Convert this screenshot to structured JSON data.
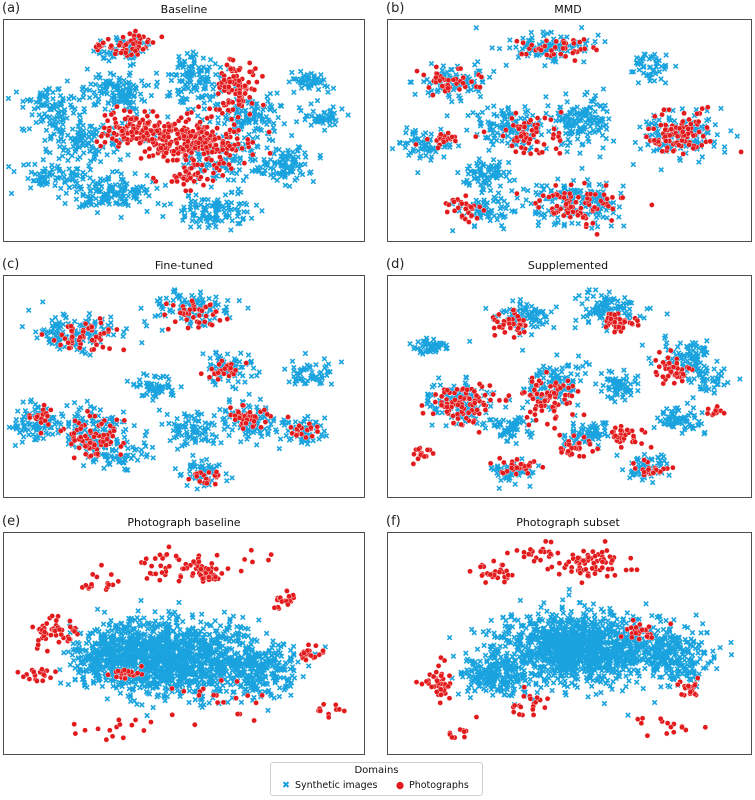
{
  "chart_data": [
    {
      "panel": "(a)",
      "title": "Baseline",
      "type": "scatter",
      "series": [
        {
          "name": "Synthetic images",
          "color": "#1aa3de",
          "marker": "x",
          "clusters": [
            [
              0.33,
              0.14,
              0.07,
              0.06,
              70
            ],
            [
              0.12,
              0.4,
              0.08,
              0.1,
              90
            ],
            [
              0.32,
              0.33,
              0.1,
              0.09,
              130
            ],
            [
              0.53,
              0.28,
              0.09,
              0.12,
              130
            ],
            [
              0.22,
              0.55,
              0.1,
              0.09,
              110
            ],
            [
              0.3,
              0.78,
              0.12,
              0.08,
              140
            ],
            [
              0.58,
              0.86,
              0.1,
              0.07,
              120
            ],
            [
              0.78,
              0.65,
              0.08,
              0.08,
              100
            ],
            [
              0.68,
              0.44,
              0.1,
              0.09,
              120
            ],
            [
              0.88,
              0.44,
              0.06,
              0.05,
              50
            ],
            [
              0.84,
              0.28,
              0.06,
              0.05,
              50
            ],
            [
              0.62,
              0.62,
              0.12,
              0.12,
              120
            ],
            [
              0.15,
              0.7,
              0.1,
              0.09,
              90
            ]
          ]
        },
        {
          "name": "Photographs",
          "color": "#e31a1c",
          "marker": "o",
          "clusters": [
            [
              0.53,
              0.55,
              0.14,
              0.12,
              260
            ],
            [
              0.36,
              0.5,
              0.09,
              0.07,
              110
            ],
            [
              0.65,
              0.3,
              0.06,
              0.12,
              90
            ],
            [
              0.36,
              0.12,
              0.05,
              0.05,
              40
            ],
            [
              0.52,
              0.7,
              0.08,
              0.06,
              40
            ],
            [
              0.28,
              0.12,
              0.04,
              0.04,
              15
            ]
          ]
        }
      ]
    },
    {
      "panel": "(b)",
      "title": "MMD",
      "type": "scatter",
      "series": [
        {
          "name": "Synthetic images",
          "color": "#1aa3de",
          "marker": "x",
          "clusters": [
            [
              0.44,
              0.12,
              0.12,
              0.06,
              110
            ],
            [
              0.18,
              0.28,
              0.1,
              0.07,
              90
            ],
            [
              0.1,
              0.56,
              0.07,
              0.07,
              70
            ],
            [
              0.33,
              0.49,
              0.1,
              0.09,
              120
            ],
            [
              0.53,
              0.46,
              0.09,
              0.12,
              150
            ],
            [
              0.8,
              0.52,
              0.12,
              0.1,
              150
            ],
            [
              0.72,
              0.21,
              0.05,
              0.07,
              50
            ],
            [
              0.27,
              0.7,
              0.07,
              0.08,
              80
            ],
            [
              0.52,
              0.82,
              0.14,
              0.1,
              170
            ],
            [
              0.27,
              0.86,
              0.08,
              0.07,
              70
            ]
          ]
        },
        {
          "name": "Photographs",
          "color": "#e31a1c",
          "marker": "o",
          "clusters": [
            [
              0.8,
              0.52,
              0.1,
              0.09,
              90
            ],
            [
              0.52,
              0.83,
              0.12,
              0.08,
              80
            ],
            [
              0.17,
              0.28,
              0.08,
              0.06,
              40
            ],
            [
              0.4,
              0.52,
              0.1,
              0.1,
              60
            ],
            [
              0.46,
              0.13,
              0.1,
              0.05,
              40
            ],
            [
              0.22,
              0.85,
              0.06,
              0.05,
              30
            ],
            [
              0.14,
              0.54,
              0.05,
              0.05,
              20
            ]
          ]
        }
      ]
    },
    {
      "panel": "(c)",
      "title": "Fine-tuned",
      "type": "scatter",
      "series": [
        {
          "name": "Synthetic images",
          "color": "#1aa3de",
          "marker": "x",
          "clusters": [
            [
              0.2,
              0.26,
              0.12,
              0.08,
              130
            ],
            [
              0.52,
              0.15,
              0.1,
              0.07,
              110
            ],
            [
              0.62,
              0.42,
              0.07,
              0.07,
              80
            ],
            [
              0.42,
              0.5,
              0.06,
              0.06,
              60
            ],
            [
              0.85,
              0.45,
              0.06,
              0.06,
              60
            ],
            [
              0.09,
              0.66,
              0.07,
              0.09,
              90
            ],
            [
              0.25,
              0.7,
              0.1,
              0.12,
              140
            ],
            [
              0.52,
              0.7,
              0.07,
              0.08,
              80
            ],
            [
              0.68,
              0.66,
              0.09,
              0.09,
              100
            ],
            [
              0.83,
              0.7,
              0.06,
              0.06,
              60
            ],
            [
              0.55,
              0.88,
              0.06,
              0.06,
              60
            ],
            [
              0.33,
              0.8,
              0.08,
              0.07,
              60
            ]
          ]
        },
        {
          "name": "Photographs",
          "color": "#e31a1c",
          "marker": "o",
          "clusters": [
            [
              0.22,
              0.28,
              0.1,
              0.07,
              50
            ],
            [
              0.54,
              0.18,
              0.08,
              0.06,
              40
            ],
            [
              0.25,
              0.72,
              0.08,
              0.09,
              70
            ],
            [
              0.68,
              0.64,
              0.07,
              0.07,
              40
            ],
            [
              0.6,
              0.42,
              0.05,
              0.05,
              25
            ],
            [
              0.84,
              0.7,
              0.04,
              0.04,
              20
            ],
            [
              0.1,
              0.64,
              0.05,
              0.05,
              20
            ],
            [
              0.55,
              0.9,
              0.05,
              0.04,
              20
            ]
          ]
        }
      ]
    },
    {
      "panel": "(d)",
      "title": "Supplemented",
      "type": "scatter",
      "series": [
        {
          "name": "Synthetic images",
          "color": "#1aa3de",
          "marker": "x",
          "clusters": [
            [
              0.38,
              0.18,
              0.08,
              0.06,
              80
            ],
            [
              0.6,
              0.16,
              0.1,
              0.08,
              100
            ],
            [
              0.12,
              0.32,
              0.06,
              0.04,
              50
            ],
            [
              0.2,
              0.57,
              0.1,
              0.1,
              120
            ],
            [
              0.46,
              0.48,
              0.08,
              0.1,
              120
            ],
            [
              0.64,
              0.5,
              0.06,
              0.06,
              70
            ],
            [
              0.82,
              0.36,
              0.07,
              0.07,
              80
            ],
            [
              0.87,
              0.47,
              0.06,
              0.06,
              50
            ],
            [
              0.8,
              0.65,
              0.07,
              0.06,
              70
            ],
            [
              0.54,
              0.72,
              0.07,
              0.07,
              80
            ],
            [
              0.34,
              0.68,
              0.07,
              0.06,
              60
            ],
            [
              0.34,
              0.88,
              0.07,
              0.05,
              60
            ],
            [
              0.72,
              0.86,
              0.06,
              0.06,
              60
            ]
          ]
        },
        {
          "name": "Photographs",
          "color": "#e31a1c",
          "marker": "o",
          "clusters": [
            [
              0.2,
              0.58,
              0.09,
              0.1,
              90
            ],
            [
              0.44,
              0.56,
              0.08,
              0.1,
              80
            ],
            [
              0.34,
              0.22,
              0.05,
              0.05,
              40
            ],
            [
              0.63,
              0.22,
              0.05,
              0.05,
              40
            ],
            [
              0.78,
              0.42,
              0.06,
              0.06,
              40
            ],
            [
              0.65,
              0.72,
              0.05,
              0.06,
              30
            ],
            [
              0.52,
              0.76,
              0.05,
              0.05,
              30
            ],
            [
              0.36,
              0.86,
              0.06,
              0.04,
              30
            ],
            [
              0.72,
              0.88,
              0.05,
              0.04,
              25
            ],
            [
              0.1,
              0.8,
              0.04,
              0.04,
              15
            ],
            [
              0.9,
              0.6,
              0.03,
              0.03,
              10
            ]
          ]
        }
      ]
    },
    {
      "panel": "(e)",
      "title": "Photograph baseline",
      "type": "scatter",
      "series": [
        {
          "name": "Synthetic images",
          "color": "#1aa3de",
          "marker": "x",
          "clusters": [
            [
              0.46,
              0.56,
              0.22,
              0.17,
              1300
            ],
            [
              0.7,
              0.62,
              0.12,
              0.12,
              250
            ],
            [
              0.28,
              0.55,
              0.1,
              0.12,
              200
            ]
          ]
        },
        {
          "name": "Photographs",
          "color": "#e31a1c",
          "marker": "o",
          "clusters": [
            [
              0.14,
              0.45,
              0.05,
              0.06,
              50
            ],
            [
              0.5,
              0.15,
              0.2,
              0.08,
              60
            ],
            [
              0.56,
              0.19,
              0.03,
              0.03,
              25
            ],
            [
              0.78,
              0.3,
              0.04,
              0.04,
              20
            ],
            [
              0.85,
              0.55,
              0.04,
              0.04,
              20
            ],
            [
              0.1,
              0.65,
              0.06,
              0.06,
              20
            ],
            [
              0.34,
              0.63,
              0.05,
              0.04,
              20
            ],
            [
              0.26,
              0.22,
              0.06,
              0.06,
              15
            ],
            [
              0.6,
              0.75,
              0.15,
              0.1,
              20
            ],
            [
              0.9,
              0.82,
              0.06,
              0.06,
              10
            ],
            [
              0.32,
              0.88,
              0.15,
              0.05,
              15
            ]
          ]
        }
      ]
    },
    {
      "panel": "(f)",
      "title": "Photograph subset",
      "type": "scatter",
      "series": [
        {
          "name": "Synthetic images",
          "color": "#1aa3de",
          "marker": "x",
          "clusters": [
            [
              0.52,
              0.52,
              0.22,
              0.15,
              1300
            ],
            [
              0.78,
              0.56,
              0.12,
              0.12,
              250
            ],
            [
              0.3,
              0.65,
              0.1,
              0.1,
              200
            ]
          ]
        },
        {
          "name": "Photographs",
          "color": "#e31a1c",
          "marker": "o",
          "clusters": [
            [
              0.55,
              0.14,
              0.12,
              0.07,
              70
            ],
            [
              0.3,
              0.18,
              0.06,
              0.06,
              30
            ],
            [
              0.7,
              0.45,
              0.06,
              0.04,
              25
            ],
            [
              0.14,
              0.68,
              0.04,
              0.08,
              40
            ],
            [
              0.82,
              0.7,
              0.05,
              0.05,
              20
            ],
            [
              0.4,
              0.78,
              0.06,
              0.06,
              20
            ],
            [
              0.76,
              0.87,
              0.08,
              0.06,
              15
            ],
            [
              0.22,
              0.9,
              0.06,
              0.04,
              10
            ],
            [
              0.42,
              0.1,
              0.08,
              0.05,
              20
            ]
          ]
        }
      ]
    }
  ],
  "legend": {
    "title": "Domains",
    "items": [
      {
        "label": "Synthetic images",
        "symbol": "✖",
        "color": "#1aa3de"
      },
      {
        "label": "Photographs",
        "symbol": "●",
        "color": "#e31a1c"
      }
    ]
  }
}
